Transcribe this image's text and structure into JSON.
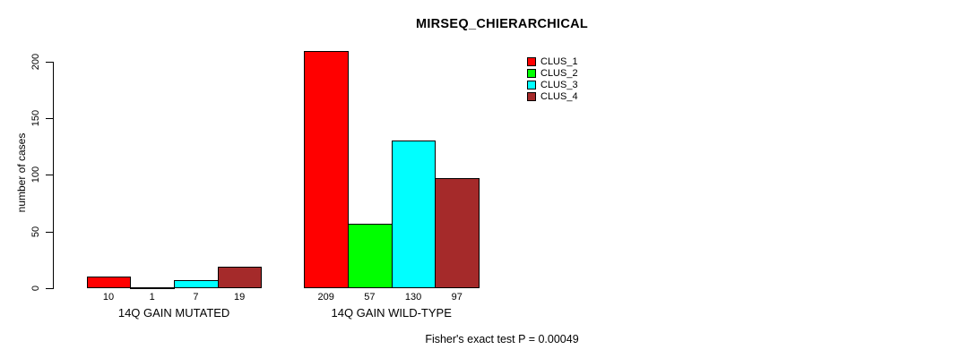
{
  "chart_data": {
    "type": "bar",
    "title": "MIRSEQ_CHIERARCHICAL",
    "ylabel": "number of cases",
    "xlabel": "",
    "annotation": "Fisher's exact test P = 0.00049",
    "yticks": [
      0,
      50,
      100,
      150,
      200
    ],
    "ylim": [
      0,
      210
    ],
    "grid": false,
    "legend_position": "top-right",
    "series": [
      {
        "name": "CLUS_1",
        "color": "#FF0000"
      },
      {
        "name": "CLUS_2",
        "color": "#00FF00"
      },
      {
        "name": "CLUS_3",
        "color": "#00FFFF"
      },
      {
        "name": "CLUS_4",
        "color": "#A52A2A"
      }
    ],
    "groups": [
      {
        "label": "14Q GAIN MUTATED",
        "values": [
          10,
          1,
          7,
          19
        ]
      },
      {
        "label": "14Q GAIN WILD-TYPE",
        "values": [
          209,
          57,
          130,
          97
        ]
      }
    ]
  }
}
